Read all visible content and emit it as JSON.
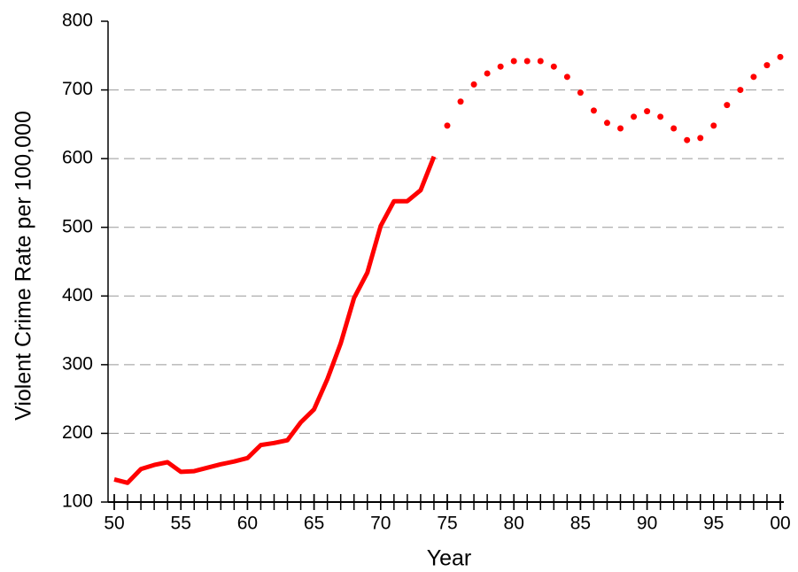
{
  "chart_data": {
    "type": "line",
    "x_label": "Year",
    "y_label": "Violent Crime Rate per 100,000",
    "xlim": [
      50,
      100
    ],
    "xticks": [
      50,
      55,
      60,
      65,
      70,
      75,
      80,
      85,
      90,
      95,
      {
        "value": 100,
        "label": "00"
      }
    ],
    "xminor_step": 1,
    "ylim": [
      100,
      800
    ],
    "yticks": [
      100,
      200,
      300,
      400,
      500,
      600,
      700,
      800
    ],
    "grid": true,
    "series": [
      {
        "color": "#ff0000",
        "style": "solid",
        "x": [
          50,
          51,
          52,
          53,
          54,
          55,
          56,
          57,
          58,
          59,
          60,
          61,
          62,
          63,
          64,
          65,
          66,
          67,
          68,
          69,
          70,
          71,
          72,
          73,
          74
        ],
        "values": [
          133,
          128,
          148,
          154,
          158,
          144,
          145,
          150,
          155,
          159,
          164,
          183,
          186,
          190,
          216,
          235,
          279,
          331,
          397,
          434,
          502,
          538,
          538,
          554,
          603
        ]
      },
      {
        "color": "#ff0000",
        "style": "dotted",
        "x": [
          75,
          76,
          77,
          78,
          79,
          80,
          81,
          82,
          83,
          84,
          85,
          86,
          87,
          88,
          89,
          90,
          91,
          92,
          93,
          94,
          95,
          96,
          97,
          98,
          99,
          100
        ],
        "values": [
          648,
          683,
          708,
          724,
          734,
          742,
          742,
          742,
          734,
          719,
          696,
          670,
          652,
          644,
          661,
          669,
          661,
          644,
          627,
          630,
          648,
          678,
          700,
          719,
          736,
          748
        ]
      }
    ]
  }
}
